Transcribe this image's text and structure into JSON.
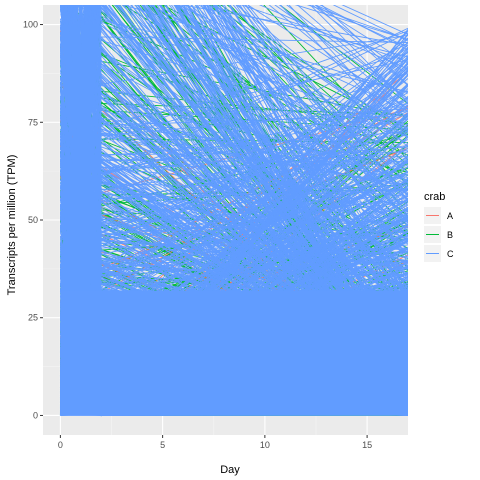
{
  "chart_data": {
    "type": "line",
    "title": "",
    "xlabel": "Day",
    "ylabel": "Transcripts per million (TPM)",
    "xlim": [
      -0.85,
      17.0
    ],
    "ylim": [
      -5,
      105
    ],
    "x_ticks": [
      0,
      5,
      10,
      15
    ],
    "y_ticks": [
      0,
      25,
      50,
      75,
      100
    ],
    "x_tick_labels": [
      "0",
      "5",
      "10",
      "15"
    ],
    "y_tick_labels": [
      "0",
      "25",
      "50",
      "75",
      "100"
    ],
    "grid": true,
    "legend": {
      "title": "crab",
      "position": "right",
      "entries": [
        {
          "label": "A",
          "color": "#F8766D"
        },
        {
          "label": "B",
          "color": "#00BA38"
        },
        {
          "label": "C",
          "color": "#619CFF"
        }
      ]
    },
    "colors": {
      "panel_background": "#EBEBEB",
      "grid_major": "#FFFFFF",
      "grid_minor": "#F5F5F5",
      "A": "#F8766D",
      "B": "#00BA38",
      "C": "#619CFF"
    },
    "x_sampling_days": [
      0,
      2,
      17
    ],
    "series": [
      {
        "name": "A",
        "color": "#F8766D"
      },
      {
        "name": "B",
        "color": "#00BA38"
      },
      {
        "name": "C",
        "color": "#619CFF"
      }
    ]
  }
}
